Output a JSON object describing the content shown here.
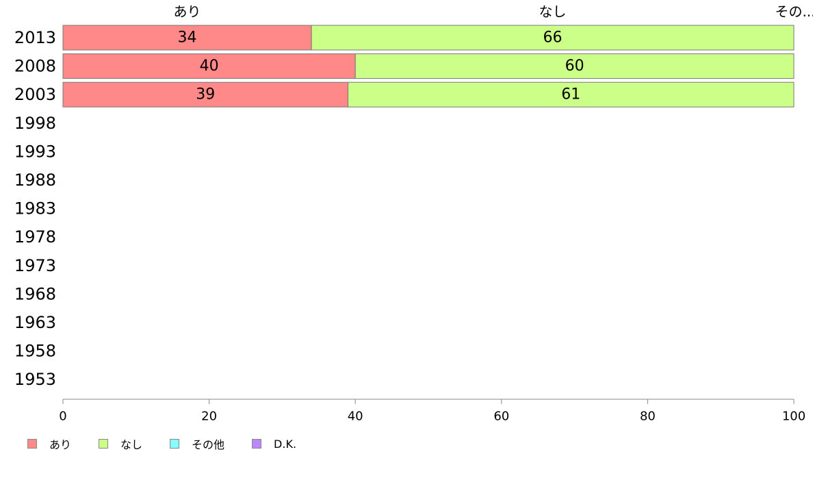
{
  "chart_data": {
    "type": "bar",
    "orientation": "horizontal",
    "stacked": true,
    "categories": [
      "2013",
      "2008",
      "2003",
      "1998",
      "1993",
      "1988",
      "1983",
      "1978",
      "1973",
      "1968",
      "1963",
      "1958",
      "1953"
    ],
    "series": [
      {
        "name": "あり",
        "color": "#ff8888",
        "values": [
          34,
          40,
          39,
          null,
          null,
          null,
          null,
          null,
          null,
          null,
          null,
          null,
          null
        ]
      },
      {
        "name": "なし",
        "color": "#ccff88",
        "values": [
          66,
          60,
          61,
          null,
          null,
          null,
          null,
          null,
          null,
          null,
          null,
          null,
          null
        ]
      },
      {
        "name": "その他",
        "color": "#88ffff",
        "values": [
          0,
          0,
          0,
          null,
          null,
          null,
          null,
          null,
          null,
          null,
          null,
          null,
          null
        ]
      },
      {
        "name": "D.K.",
        "color": "#bb88ff",
        "values": [
          0,
          0,
          0,
          null,
          null,
          null,
          null,
          null,
          null,
          null,
          null,
          null,
          null
        ]
      }
    ],
    "top_labels": [
      "あり",
      "なし",
      "その..."
    ],
    "xlim": [
      0,
      100
    ],
    "xticks": [
      0,
      20,
      40,
      60,
      80,
      100
    ],
    "grid": false,
    "legend_position": "bottom-left"
  }
}
